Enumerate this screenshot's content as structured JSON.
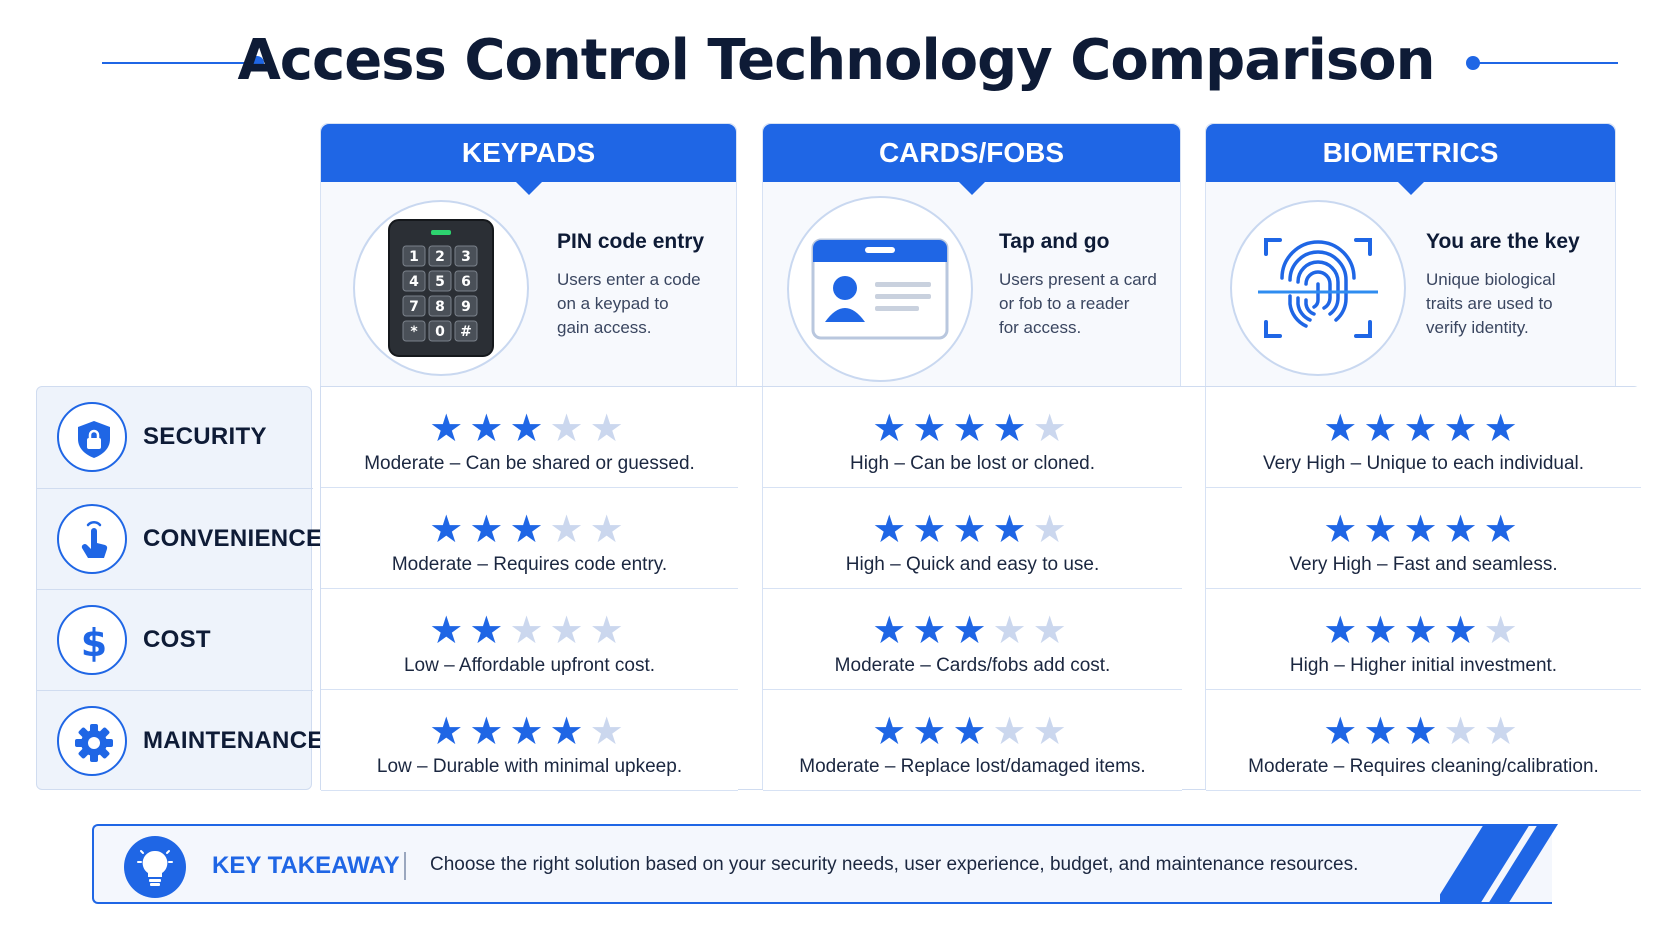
{
  "title": "Access Control Technology Comparison",
  "accent_color": "#1f66e5",
  "technologies": [
    {
      "name": "KEYPADS",
      "icon": "keypad-icon",
      "tagline": "PIN code entry",
      "description": [
        "Users enter a code",
        "on a keypad to",
        "gain access."
      ],
      "keys": [
        "1",
        "2",
        "3",
        "4",
        "5",
        "6",
        "7",
        "8",
        "9",
        "*",
        "0",
        "#"
      ]
    },
    {
      "name": "CARDS/FOBS",
      "icon": "id-card-icon",
      "tagline": "Tap and go",
      "description": [
        "Users present a card",
        "or fob to a reader",
        "for access."
      ]
    },
    {
      "name": "BIOMETRICS",
      "icon": "fingerprint-icon",
      "tagline": "You are the key",
      "description": [
        "Unique biological",
        "traits are used to",
        "verify identity."
      ]
    }
  ],
  "criteria": [
    {
      "label": "SECURITY",
      "icon": "shield-lock-icon"
    },
    {
      "label": "CONVENIENCE",
      "icon": "tap-hand-icon"
    },
    {
      "label": "COST",
      "icon": "dollar-icon"
    },
    {
      "label": "MAINTENANCE",
      "icon": "gear-icon"
    }
  ],
  "max_stars": 5,
  "ratings": [
    [
      {
        "stars": 3,
        "text": "Moderate – Can be shared or guessed."
      },
      {
        "stars": 4,
        "text": "High – Can be lost or cloned."
      },
      {
        "stars": 5,
        "text": "Very High – Unique to each individual."
      }
    ],
    [
      {
        "stars": 3,
        "text": "Moderate – Requires code entry."
      },
      {
        "stars": 4,
        "text": "High – Quick and easy to use."
      },
      {
        "stars": 5,
        "text": "Very High – Fast and seamless."
      }
    ],
    [
      {
        "stars": 2,
        "text": "Low – Affordable upfront cost."
      },
      {
        "stars": 3,
        "text": "Moderate – Cards/fobs add cost."
      },
      {
        "stars": 4,
        "text": "High – Higher initial investment."
      }
    ],
    [
      {
        "stars": 4,
        "text": "Low – Durable with minimal upkeep."
      },
      {
        "stars": 3,
        "text": "Moderate – Replace lost/damaged items."
      },
      {
        "stars": 3,
        "text": "Moderate – Requires cleaning/calibration."
      }
    ]
  ],
  "takeaway": {
    "label": "KEY TAKEAWAY",
    "icon": "lightbulb-icon",
    "text": "Choose the right solution based on your security needs, user experience, budget, and maintenance resources."
  }
}
